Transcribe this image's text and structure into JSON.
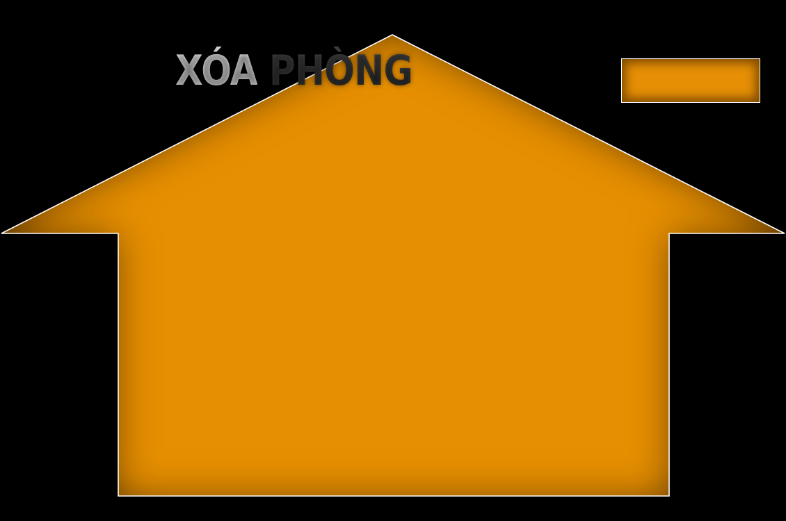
{
  "title": {
    "part1": "XÓA",
    "part2": "PHÒNG"
  },
  "house": {
    "fill_color": "#e68f05",
    "edge_shade_color": "#6e4100",
    "outline_color": "#ffffff",
    "icon": "house-icon"
  },
  "action_box": {
    "fill_color": "#e68f05",
    "outline_color": "#ffffff"
  },
  "background_color": "#000000"
}
